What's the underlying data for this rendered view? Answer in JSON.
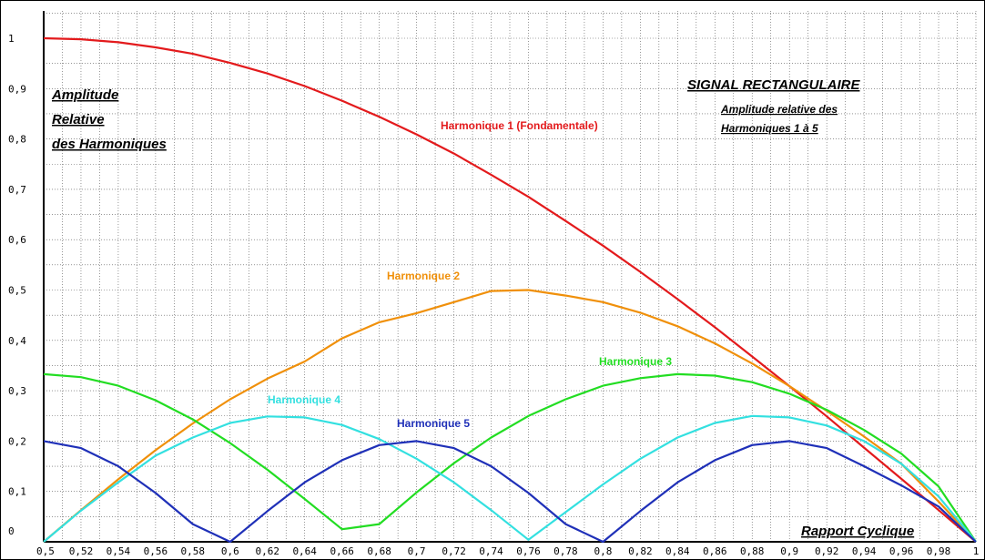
{
  "chart_data": {
    "type": "line",
    "title": "SIGNAL RECTANGULAIRE",
    "subtitle_lines": [
      "Amplitude relative des",
      "Harmoniques 1 à 5"
    ],
    "ylabel_lines": [
      "Amplitude",
      "Relative",
      "des Harmoniques"
    ],
    "xlabel": "Rapport Cyclique",
    "xlim": [
      0.5,
      1.0
    ],
    "ylim": [
      0,
      1
    ],
    "x_tick_labels": [
      "0,5",
      "0,52",
      "0,54",
      "0,56",
      "0,58",
      "0,6",
      "0,62",
      "0,64",
      "0,66",
      "0,68",
      "0,7",
      "0,72",
      "0,74",
      "0,76",
      "0,78",
      "0,8",
      "0,82",
      "0,84",
      "0,86",
      "0,88",
      "0,9",
      "0,92",
      "0,94",
      "0,96",
      "0,98",
      "1"
    ],
    "y_tick_labels": [
      "0",
      "0,1",
      "0,2",
      "0,3",
      "0,4",
      "0,5",
      "0,6",
      "0,7",
      "0,8",
      "0,9",
      "1"
    ],
    "grid": true,
    "x": [
      0.5,
      0.52,
      0.54,
      0.56,
      0.58,
      0.6,
      0.62,
      0.64,
      0.66,
      0.68,
      0.7,
      0.72,
      0.74,
      0.76,
      0.78,
      0.8,
      0.82,
      0.84,
      0.86,
      0.88,
      0.9,
      0.92,
      0.94,
      0.96,
      0.98,
      1.0
    ],
    "series": [
      {
        "name": "Harmonique 1 (Fondamentale)",
        "color": "#e31a1c",
        "values": [
          1.0,
          0.998,
          0.992,
          0.982,
          0.969,
          0.951,
          0.93,
          0.905,
          0.876,
          0.844,
          0.809,
          0.771,
          0.729,
          0.685,
          0.637,
          0.588,
          0.536,
          0.482,
          0.426,
          0.368,
          0.309,
          0.249,
          0.187,
          0.125,
          0.063,
          0.0
        ]
      },
      {
        "name": "Harmonique 2",
        "color": "#f0900a",
        "values": [
          0.0,
          0.063,
          0.124,
          0.182,
          0.235,
          0.283,
          0.324,
          0.358,
          0.404,
          0.436,
          0.454,
          0.476,
          0.498,
          0.5,
          0.489,
          0.476,
          0.455,
          0.428,
          0.394,
          0.354,
          0.309,
          0.26,
          0.209,
          0.155,
          0.08,
          0.0
        ]
      },
      {
        "name": "Harmonique 3",
        "color": "#22dd22",
        "values": [
          0.333,
          0.327,
          0.31,
          0.281,
          0.243,
          0.196,
          0.143,
          0.085,
          0.025,
          0.035,
          0.098,
          0.156,
          0.207,
          0.25,
          0.283,
          0.31,
          0.325,
          0.333,
          0.33,
          0.317,
          0.294,
          0.262,
          0.222,
          0.175,
          0.11,
          0.0
        ]
      },
      {
        "name": "Harmonique 4",
        "color": "#33e0e0",
        "values": [
          0.0,
          0.062,
          0.118,
          0.171,
          0.207,
          0.236,
          0.249,
          0.247,
          0.232,
          0.204,
          0.165,
          0.118,
          0.063,
          0.004,
          0.059,
          0.114,
          0.165,
          0.207,
          0.236,
          0.25,
          0.247,
          0.231,
          0.2,
          0.155,
          0.09,
          0.0
        ]
      },
      {
        "name": "Harmonique 5",
        "color": "#1f30b8",
        "values": [
          0.2,
          0.186,
          0.15,
          0.097,
          0.035,
          0.0,
          0.061,
          0.118,
          0.162,
          0.192,
          0.2,
          0.186,
          0.15,
          0.097,
          0.035,
          0.0,
          0.061,
          0.118,
          0.162,
          0.192,
          0.2,
          0.186,
          0.15,
          0.112,
          0.07,
          0.0
        ]
      }
    ]
  }
}
